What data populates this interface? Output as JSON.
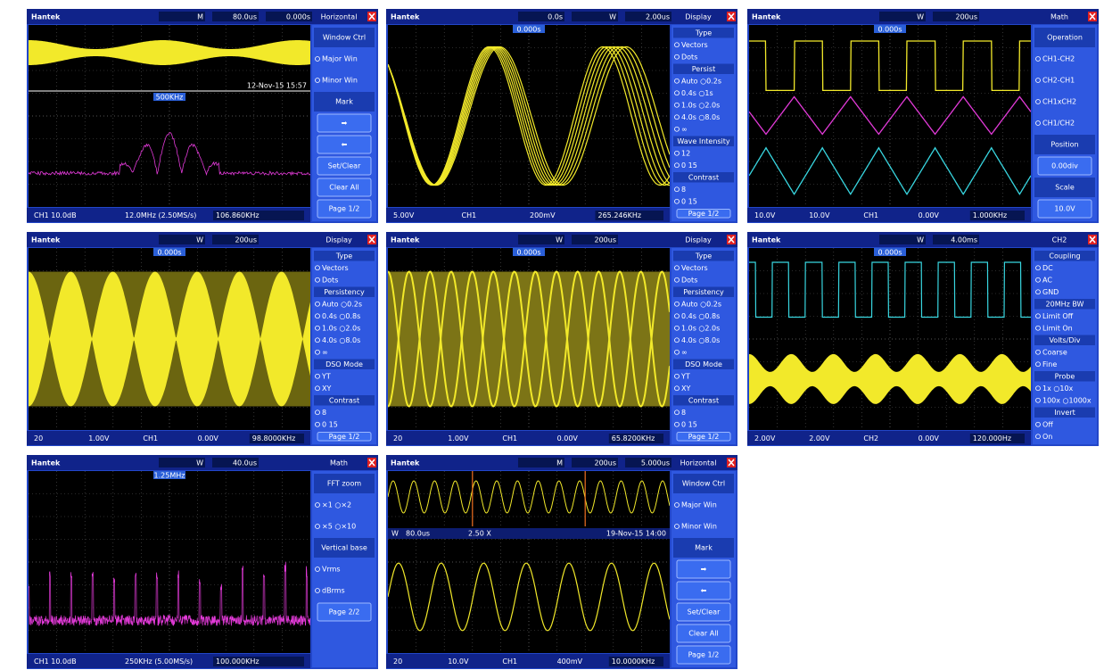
{
  "panels": [
    {
      "top": [
        "Hantek",
        "M",
        "80.0us",
        "0.000s"
      ],
      "menu": {
        "title": "Horizontal",
        "items": [
          {
            "heading": "Window Ctrl"
          },
          {
            "option": "Major Win"
          },
          {
            "option": "Minor Win"
          },
          {
            "heading": "Mark"
          },
          {
            "button": "➡"
          },
          {
            "button": "⬅"
          },
          {
            "button": "Set/Clear"
          },
          {
            "button": "Clear All"
          },
          {
            "button": "Page 1/2"
          }
        ]
      },
      "screen": [
        "12-Nov-15 15:57",
        "500KHz"
      ],
      "status": [
        "CH1 10.0dB",
        "12.0MHz (2.50MS/s)",
        "106.860KHz"
      ]
    },
    {
      "top": [
        "Hantek",
        "0.0s",
        "W",
        "2.00us"
      ],
      "marker": "0.000s",
      "menu": {
        "title": "Display",
        "items": [
          {
            "heading": "Type"
          },
          {
            "option": "Vectors"
          },
          {
            "option": "Dots"
          },
          {
            "heading": "Persist"
          },
          {
            "option": "Auto ○0.2s"
          },
          {
            "option": "0.4s ○1s"
          },
          {
            "option": "1.0s ○2.0s"
          },
          {
            "option": "4.0s ○8.0s"
          },
          {
            "option": "∞"
          },
          {
            "heading": "Wave Intensity"
          },
          {
            "option": "12"
          },
          {
            "option": "0 15"
          },
          {
            "heading": "Contrast"
          },
          {
            "option": "8"
          },
          {
            "option": "0 15"
          },
          {
            "button": "Page 1/2"
          }
        ]
      },
      "status": [
        "5.00V",
        "CH1",
        "200mV",
        "265.246KHz"
      ]
    },
    {
      "top": [
        "Hantek",
        "W",
        "200us"
      ],
      "marker": "0.000s",
      "menu": {
        "title": "Math",
        "items": [
          {
            "heading": "Operation"
          },
          {
            "option": "CH1-CH2"
          },
          {
            "option": "CH2-CH1"
          },
          {
            "option": "CH1xCH2"
          },
          {
            "option": "CH1/CH2"
          },
          {
            "heading": "Position"
          },
          {
            "button": "0.00div"
          },
          {
            "heading": "Scale"
          },
          {
            "button": "10.0V"
          }
        ]
      },
      "status": [
        "10.0V",
        "10.0V",
        "CH1",
        "0.00V",
        "1.000KHz"
      ]
    },
    {
      "top": [
        "Hantek",
        "W",
        "200us"
      ],
      "marker": "0.000s",
      "menu": {
        "title": "Display",
        "items": [
          {
            "heading": "Type"
          },
          {
            "option": "Vectors"
          },
          {
            "option": "Dots"
          },
          {
            "heading": "Persistency"
          },
          {
            "option": "Auto ○0.2s"
          },
          {
            "option": "0.4s ○0.8s"
          },
          {
            "option": "1.0s ○2.0s"
          },
          {
            "option": "4.0s ○8.0s"
          },
          {
            "option": "∞"
          },
          {
            "heading": "DSO Mode"
          },
          {
            "option": "YT"
          },
          {
            "option": "XY"
          },
          {
            "heading": "Contrast"
          },
          {
            "option": "8"
          },
          {
            "option": "0 15"
          },
          {
            "button": "Page 1/2"
          }
        ]
      },
      "status": [
        "20",
        "1.00V",
        "CH1",
        "0.00V",
        "98.8000KHz"
      ]
    },
    {
      "top": [
        "Hantek",
        "W",
        "200us"
      ],
      "marker": "0.000s",
      "menu": {
        "title": "Display",
        "items": [
          {
            "heading": "Type"
          },
          {
            "option": "Vectors"
          },
          {
            "option": "Dots"
          },
          {
            "heading": "Persistency"
          },
          {
            "option": "Auto ○0.2s"
          },
          {
            "option": "0.4s ○0.8s"
          },
          {
            "option": "1.0s ○2.0s"
          },
          {
            "option": "4.0s ○8.0s"
          },
          {
            "option": "∞"
          },
          {
            "heading": "DSO Mode"
          },
          {
            "option": "YT"
          },
          {
            "option": "XY"
          },
          {
            "heading": "Contrast"
          },
          {
            "option": "8"
          },
          {
            "option": "0 15"
          },
          {
            "button": "Page 1/2"
          }
        ]
      },
      "status": [
        "20",
        "1.00V",
        "CH1",
        "0.00V",
        "65.8200KHz"
      ]
    },
    {
      "top": [
        "Hantek",
        "W",
        "4.00ms"
      ],
      "marker": "0.000s",
      "menu": {
        "title": "CH2",
        "items": [
          {
            "heading": "Coupling"
          },
          {
            "option": "DC"
          },
          {
            "option": "AC"
          },
          {
            "option": "GND"
          },
          {
            "heading": "20MHz BW"
          },
          {
            "option": "Limit Off"
          },
          {
            "option": "Limit On"
          },
          {
            "heading": "Volts/Div"
          },
          {
            "option": "Coarse"
          },
          {
            "option": "Fine"
          },
          {
            "heading": "Probe"
          },
          {
            "option": "1x ○10x"
          },
          {
            "option": "100x ○1000x"
          },
          {
            "heading": "Invert"
          },
          {
            "option": "Off"
          },
          {
            "option": "On"
          }
        ]
      },
      "status": [
        "2.00V",
        "2.00V",
        "CH2",
        "0.00V",
        "120.000Hz"
      ]
    },
    {
      "top": [
        "Hantek",
        "W",
        "40.0us"
      ],
      "marker": "1.25MHz",
      "menu": {
        "title": "Math",
        "items": [
          {
            "heading": "FFT zoom"
          },
          {
            "option": "×1 ○×2"
          },
          {
            "option": "×5 ○×10"
          },
          {
            "heading": "Vertical base"
          },
          {
            "option": "Vrms"
          },
          {
            "option": "dBrms"
          },
          {
            "button": "Page 2/2"
          }
        ]
      },
      "status": [
        "CH1 10.0dB",
        "250KHz (5.00MS/s)",
        "100.000KHz"
      ]
    },
    {
      "top": [
        "Hantek",
        "M",
        "200us",
        "5.000us"
      ],
      "menu": {
        "title": "Horizontal",
        "items": [
          {
            "heading": "Window Ctrl"
          },
          {
            "option": "Major Win"
          },
          {
            "option": "Minor Win"
          },
          {
            "heading": "Mark"
          },
          {
            "button": "➡"
          },
          {
            "button": "⬅"
          },
          {
            "button": "Set/Clear"
          },
          {
            "button": "Clear All"
          },
          {
            "button": "Page 1/2"
          }
        ]
      },
      "screen": [
        "W",
        "80.0us",
        "2.50 X",
        "19-Nov-15 14:00"
      ],
      "status": [
        "20",
        "10.0V",
        "CH1",
        "400mV",
        "10.0000KHz"
      ]
    }
  ]
}
